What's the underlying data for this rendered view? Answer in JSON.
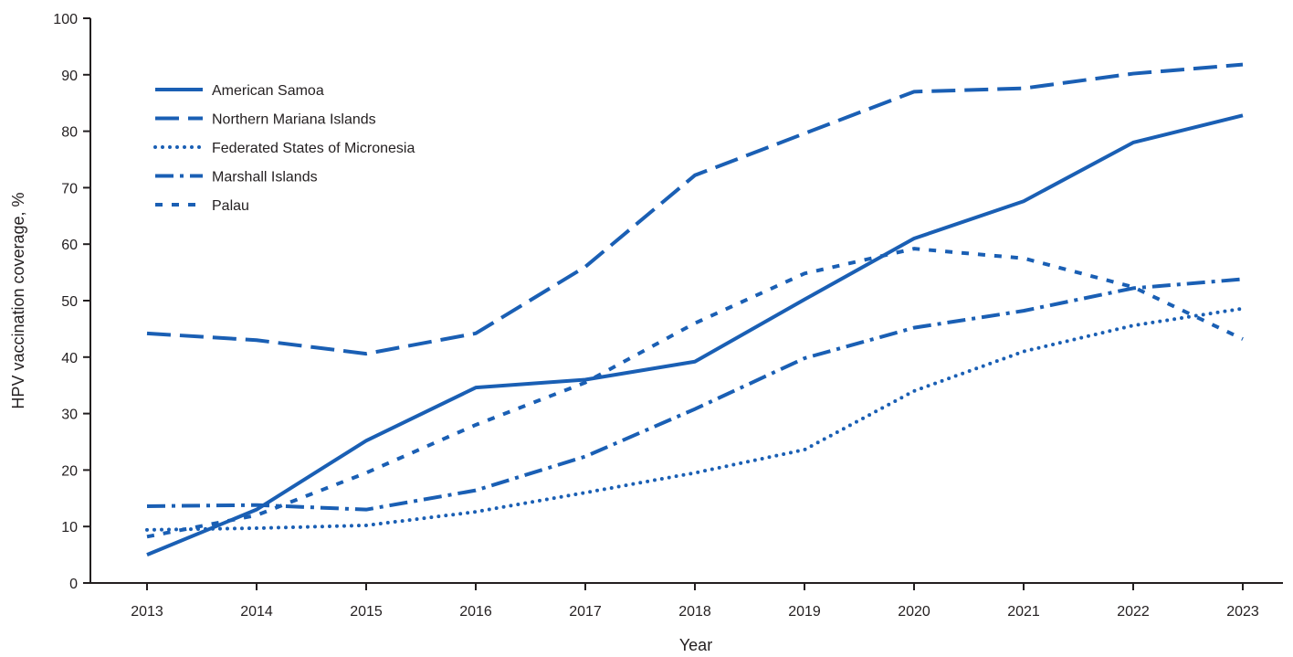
{
  "chart_data": {
    "type": "line",
    "title": "",
    "xlabel": "Year",
    "ylabel": "HPV vaccination coverage, %",
    "ylim": [
      0,
      100
    ],
    "yticks": [
      0,
      10,
      20,
      30,
      40,
      50,
      60,
      70,
      80,
      90,
      100
    ],
    "x": [
      "2013",
      "2014",
      "2015",
      "2016",
      "2017",
      "2018",
      "2019",
      "2020",
      "2021",
      "2022",
      "2023"
    ],
    "grid": false,
    "legend_position": "top-left",
    "line_color": "#1a5fb4",
    "series": [
      {
        "name": "American Samoa",
        "style": "solid",
        "values": [
          5,
          13,
          25.2,
          34.6,
          36,
          39.2,
          50.2,
          61,
          67.6,
          78,
          82.8
        ]
      },
      {
        "name": "Northern Mariana Islands",
        "style": "long-dash",
        "values": [
          44.2,
          43,
          40.6,
          44.2,
          56,
          72.2,
          79.6,
          87,
          87.6,
          90.2,
          91.8
        ]
      },
      {
        "name": "Federated States of Micronesia",
        "style": "dotted",
        "values": [
          9.4,
          9.7,
          10.2,
          12.6,
          16,
          19.5,
          23.6,
          34,
          41,
          45.6,
          48.6
        ]
      },
      {
        "name": "Marshall Islands",
        "style": "dash-dot",
        "values": [
          13.6,
          13.8,
          13,
          16.4,
          22.4,
          30.8,
          39.8,
          45.2,
          48.2,
          52.2,
          53.8
        ]
      },
      {
        "name": "Palau",
        "style": "short-dash",
        "values": [
          8.2,
          12,
          19.5,
          28,
          35.5,
          46,
          54.8,
          59.2,
          57.5,
          52.4,
          43.2
        ]
      }
    ]
  }
}
